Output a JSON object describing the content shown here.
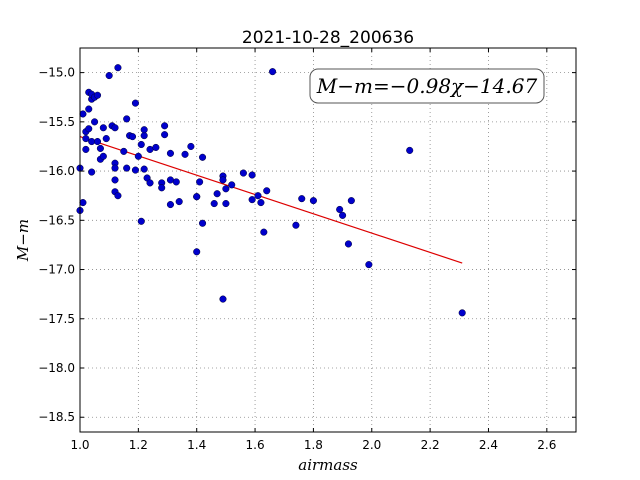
{
  "chart_data": {
    "type": "scatter",
    "title": "2021-10-28_200636",
    "xlabel": "airmass",
    "ylabel": "M−m",
    "xlim": [
      1.0,
      2.7
    ],
    "ylim": [
      -18.65,
      -14.75
    ],
    "y_inverted": true,
    "grid": true,
    "xticks": [
      "1.0",
      "1.2",
      "1.4",
      "1.6",
      "1.8",
      "2.0",
      "2.2",
      "2.4",
      "2.6"
    ],
    "xtick_values": [
      1.0,
      1.2,
      1.4,
      1.6,
      1.8,
      2.0,
      2.2,
      2.4,
      2.6
    ],
    "yticks": [
      "−15.0",
      "−15.5",
      "−16.0",
      "−16.5",
      "−17.0",
      "−17.5",
      "−18.0",
      "−18.5"
    ],
    "ytick_values": [
      -15.0,
      -15.5,
      -16.0,
      -16.5,
      -17.0,
      -17.5,
      -18.0,
      -18.5
    ],
    "annotation": "M−m=−0.98χ−14.67",
    "annotation_position": "top-right",
    "colors": {
      "points": "#0000cc",
      "fit_line": "#dd0000",
      "grid": "#888888"
    },
    "fit": {
      "slope": -0.98,
      "intercept": -14.67,
      "x_range": [
        1.0,
        2.31
      ]
    },
    "series": [
      {
        "points": [
          [
            1.0,
            -15.97
          ],
          [
            1.0,
            -16.4
          ],
          [
            1.01,
            -16.32
          ],
          [
            1.01,
            -15.42
          ],
          [
            1.02,
            -15.6
          ],
          [
            1.02,
            -15.78
          ],
          [
            1.02,
            -15.67
          ],
          [
            1.03,
            -15.2
          ],
          [
            1.03,
            -15.37
          ],
          [
            1.03,
            -15.57
          ],
          [
            1.04,
            -15.27
          ],
          [
            1.04,
            -15.22
          ],
          [
            1.04,
            -15.7
          ],
          [
            1.04,
            -16.01
          ],
          [
            1.05,
            -15.5
          ],
          [
            1.05,
            -15.25
          ],
          [
            1.06,
            -15.23
          ],
          [
            1.06,
            -15.7
          ],
          [
            1.07,
            -15.77
          ],
          [
            1.07,
            -15.88
          ],
          [
            1.08,
            -15.56
          ],
          [
            1.08,
            -15.85
          ],
          [
            1.09,
            -15.67
          ],
          [
            1.1,
            -15.03
          ],
          [
            1.11,
            -15.54
          ],
          [
            1.12,
            -15.56
          ],
          [
            1.12,
            -15.92
          ],
          [
            1.12,
            -15.97
          ],
          [
            1.12,
            -16.09
          ],
          [
            1.12,
            -16.21
          ],
          [
            1.13,
            -16.25
          ],
          [
            1.13,
            -14.95
          ],
          [
            1.15,
            -15.8
          ],
          [
            1.16,
            -15.47
          ],
          [
            1.16,
            -15.97
          ],
          [
            1.17,
            -15.64
          ],
          [
            1.18,
            -15.65
          ],
          [
            1.19,
            -15.31
          ],
          [
            1.19,
            -15.99
          ],
          [
            1.2,
            -15.85
          ],
          [
            1.21,
            -15.73
          ],
          [
            1.21,
            -16.51
          ],
          [
            1.22,
            -15.64
          ],
          [
            1.22,
            -15.58
          ],
          [
            1.22,
            -15.98
          ],
          [
            1.23,
            -16.07
          ],
          [
            1.24,
            -16.12
          ],
          [
            1.24,
            -15.78
          ],
          [
            1.26,
            -15.76
          ],
          [
            1.28,
            -16.12
          ],
          [
            1.28,
            -16.17
          ],
          [
            1.29,
            -15.54
          ],
          [
            1.29,
            -15.63
          ],
          [
            1.31,
            -15.82
          ],
          [
            1.31,
            -16.09
          ],
          [
            1.31,
            -16.34
          ],
          [
            1.33,
            -16.11
          ],
          [
            1.34,
            -16.31
          ],
          [
            1.36,
            -15.83
          ],
          [
            1.38,
            -15.75
          ],
          [
            1.4,
            -16.26
          ],
          [
            1.4,
            -16.26
          ],
          [
            1.4,
            -16.82
          ],
          [
            1.41,
            -16.11
          ],
          [
            1.42,
            -16.53
          ],
          [
            1.42,
            -15.86
          ],
          [
            1.46,
            -16.33
          ],
          [
            1.47,
            -16.23
          ],
          [
            1.49,
            -16.05
          ],
          [
            1.49,
            -16.09
          ],
          [
            1.49,
            -17.3
          ],
          [
            1.5,
            -16.18
          ],
          [
            1.5,
            -16.33
          ],
          [
            1.52,
            -16.14
          ],
          [
            1.56,
            -16.02
          ],
          [
            1.59,
            -16.04
          ],
          [
            1.59,
            -16.29
          ],
          [
            1.61,
            -16.25
          ],
          [
            1.62,
            -16.32
          ],
          [
            1.63,
            -16.62
          ],
          [
            1.64,
            -16.2
          ],
          [
            1.66,
            -14.99
          ],
          [
            1.74,
            -16.55
          ],
          [
            1.76,
            -16.28
          ],
          [
            1.8,
            -16.3
          ],
          [
            1.89,
            -16.39
          ],
          [
            1.9,
            -16.45
          ],
          [
            1.92,
            -16.74
          ],
          [
            1.93,
            -16.3
          ],
          [
            1.99,
            -16.95
          ],
          [
            2.13,
            -15.79
          ],
          [
            2.31,
            -17.44
          ]
        ]
      }
    ]
  }
}
